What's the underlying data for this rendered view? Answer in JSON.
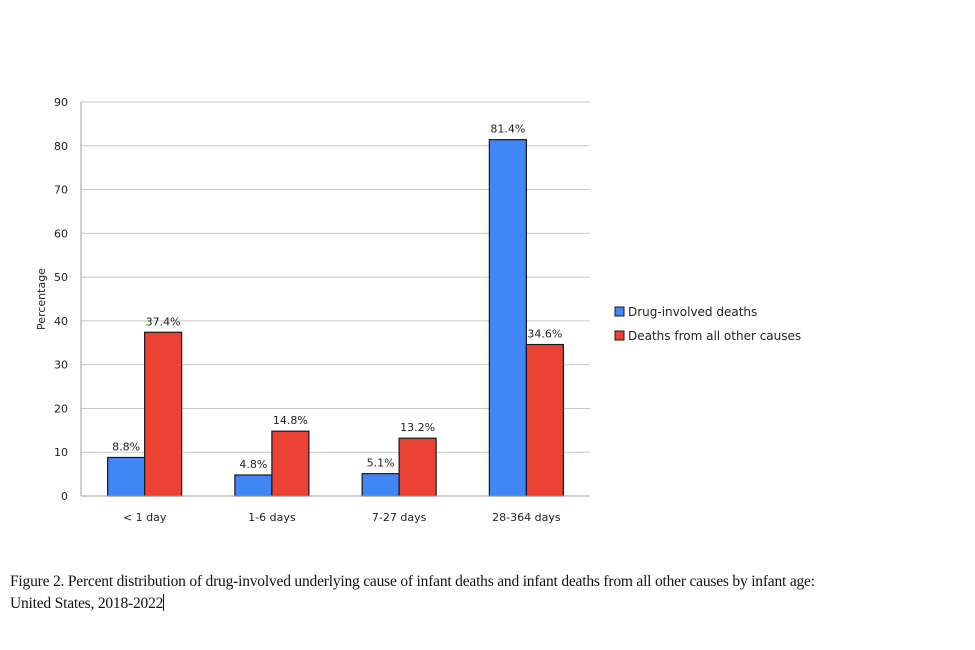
{
  "chart_data": {
    "type": "bar",
    "title": "",
    "xlabel": "",
    "ylabel": "Percentage",
    "ylim": [
      0,
      90
    ],
    "yticks": [
      0,
      10,
      20,
      30,
      40,
      50,
      60,
      70,
      80,
      90
    ],
    "grid": true,
    "legend_position": "right",
    "categories": [
      "< 1 day",
      "1-6 days",
      "7-27 days",
      "28-364 days"
    ],
    "series": [
      {
        "name": "Drug-involved deaths",
        "color": "#4285f4",
        "values": [
          8.8,
          4.8,
          5.1,
          81.4
        ],
        "labels": [
          "8.8%",
          "4.8%",
          "5.1%",
          "81.4%"
        ]
      },
      {
        "name": "Deaths from all other causes",
        "color": "#ea4335",
        "values": [
          37.4,
          14.8,
          13.2,
          34.6
        ],
        "labels": [
          "37.4%",
          "14.8%",
          "13.2%",
          "34.6%"
        ]
      }
    ]
  },
  "caption": {
    "line1": "Figure 2. Percent distribution of drug-involved underlying cause of infant deaths and infant deaths from all other causes by infant age:",
    "line2": "United States, 2018-2022"
  }
}
